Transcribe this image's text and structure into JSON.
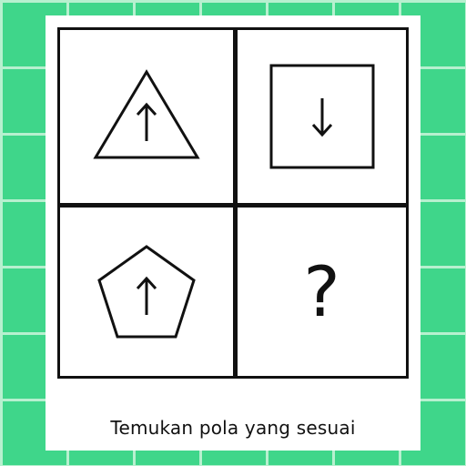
{
  "puzzle": {
    "cells": [
      {
        "shape": "triangle",
        "arrow": "up",
        "label": ""
      },
      {
        "shape": "square",
        "arrow": "down",
        "label": ""
      },
      {
        "shape": "pentagon",
        "arrow": "up",
        "label": ""
      },
      {
        "shape": "none",
        "arrow": "none",
        "label": "?"
      }
    ]
  },
  "caption": "Temukan pola yang sesuai",
  "colors": {
    "background": "#3fd68a",
    "grid_line": "#b7f0cf",
    "ink": "#111111",
    "card": "#ffffff"
  },
  "icons": [
    "triangle-shape-icon",
    "square-shape-icon",
    "pentagon-shape-icon",
    "arrow-up-icon",
    "arrow-down-icon"
  ]
}
